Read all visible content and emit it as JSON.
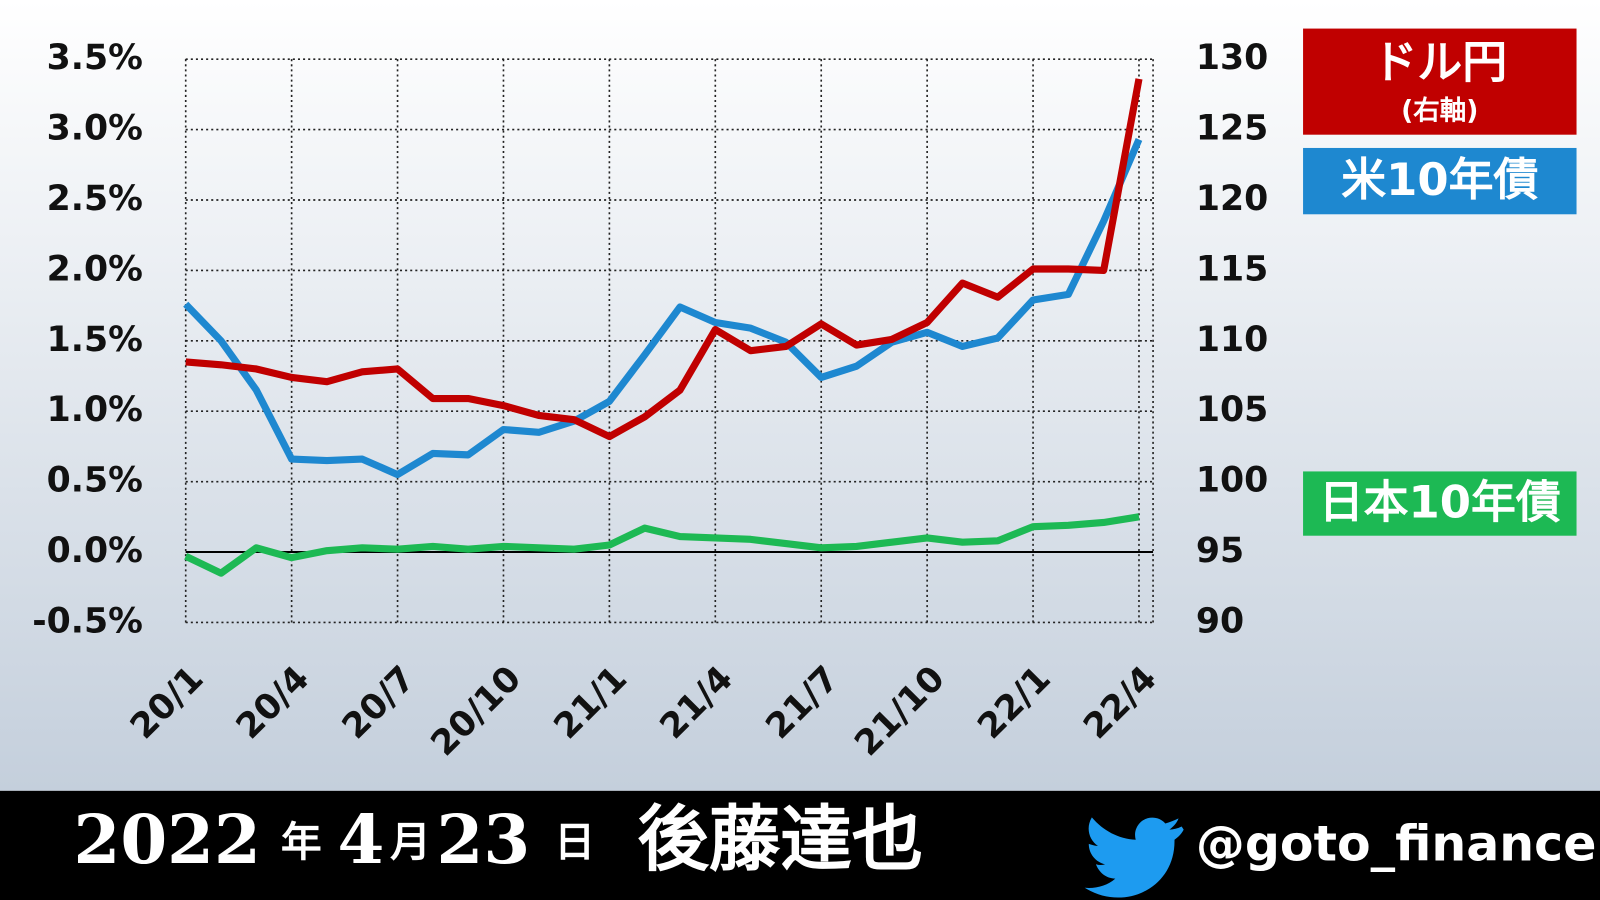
{
  "chart_data": {
    "type": "line",
    "categories": [
      "20/1",
      null,
      null,
      "20/4",
      null,
      null,
      "20/7",
      null,
      null,
      "20/10",
      null,
      null,
      "21/1",
      null,
      null,
      "21/4",
      null,
      null,
      "21/7",
      null,
      null,
      "21/10",
      null,
      null,
      "22/1",
      null,
      null,
      "22/4"
    ],
    "series": [
      {
        "name": "ドル円",
        "color": "#c00000",
        "axis": "y2",
        "values": [
          108.5,
          108.3,
          108.0,
          107.4,
          107.1,
          107.8,
          108.0,
          105.9,
          105.9,
          105.4,
          104.7,
          104.4,
          103.2,
          104.6,
          106.5,
          110.8,
          109.3,
          109.6,
          111.2,
          109.7,
          110.1,
          111.3,
          114.1,
          113.1,
          115.1,
          115.1,
          115.0,
          128.6
        ]
      },
      {
        "name": "米10年債",
        "color": "#1e88d0",
        "values": [
          1.76,
          1.5,
          1.15,
          0.66,
          0.65,
          0.66,
          0.55,
          0.7,
          0.69,
          0.87,
          0.85,
          0.93,
          1.07,
          1.4,
          1.74,
          1.63,
          1.59,
          1.49,
          1.24,
          1.32,
          1.49,
          1.56,
          1.46,
          1.52,
          1.79,
          1.83,
          2.35,
          2.93
        ]
      },
      {
        "name": "日本10年債",
        "color": "#1db954",
        "values": [
          -0.03,
          -0.15,
          0.03,
          -0.04,
          0.01,
          0.03,
          0.02,
          0.04,
          0.02,
          0.04,
          0.03,
          0.02,
          0.05,
          0.17,
          0.11,
          0.1,
          0.09,
          0.06,
          0.03,
          0.04,
          0.07,
          0.1,
          0.07,
          0.08,
          0.18,
          0.19,
          0.21,
          0.25
        ]
      }
    ],
    "y2_note": "(右軸)",
    "ylim": [
      -0.5,
      3.5
    ],
    "yticks": [
      {
        "value": -0.5,
        "label": "-0.5%"
      },
      {
        "value": 0,
        "label": "0.0%"
      },
      {
        "value": 0.5,
        "label": "0.5%"
      },
      {
        "value": 1,
        "label": "1.0%"
      },
      {
        "value": 1.5,
        "label": "1.5%"
      },
      {
        "value": 2,
        "label": "2.0%"
      },
      {
        "value": 2.5,
        "label": "2.5%"
      },
      {
        "value": 3,
        "label": "3.0%"
      },
      {
        "value": 3.5,
        "label": "3.5%"
      }
    ],
    "y2lim": [
      90,
      130
    ],
    "y2ticks": [
      90,
      95,
      100,
      105,
      110,
      115,
      120,
      125,
      130
    ],
    "grid": true
  },
  "footer": {
    "year": "2022",
    "year_unit": "年",
    "month": "4",
    "month_unit": "月",
    "day": "23",
    "day_unit": "日",
    "author": "後藤達也",
    "handle": "@goto_finance"
  }
}
